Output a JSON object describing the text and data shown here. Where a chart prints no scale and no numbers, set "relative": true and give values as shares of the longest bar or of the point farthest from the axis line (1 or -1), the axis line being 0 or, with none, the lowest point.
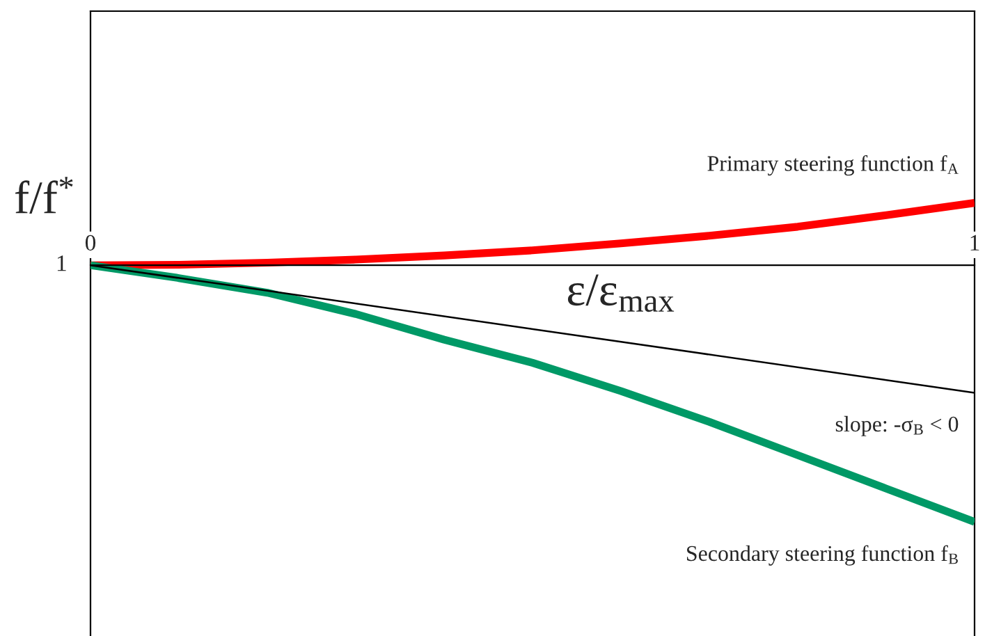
{
  "chart_data": {
    "type": "line",
    "relative": true,
    "ylabel": "f/f$^{*}$",
    "xlabel": "ε/ε$_{max}$",
    "x": [
      0,
      0.1,
      0.2,
      0.3,
      0.4,
      0.5,
      0.6,
      0.7,
      0.8,
      0.9,
      1.0
    ],
    "xlim": [
      0,
      1
    ],
    "xticks": [
      0,
      1
    ],
    "series": [
      {
        "name": "Primary steering function f$_{A}$",
        "color": "#ff0000",
        "values": [
          0,
          0.002,
          0.01,
          0.022,
          0.038,
          0.058,
          0.085,
          0.115,
          0.15,
          0.195,
          0.243
        ]
      },
      {
        "name": "Secondary steering function f$_{B}$",
        "color": "#009966",
        "values": [
          0,
          -0.05,
          -0.107,
          -0.19,
          -0.29,
          -0.38,
          -0.49,
          -0.61,
          -0.74,
          -0.87,
          -1.0
        ]
      },
      {
        "name": "slope: -σ$_{B}$ < 0",
        "color": "#000000",
        "x": [
          0,
          1
        ],
        "values": [
          0,
          -0.497
        ]
      }
    ],
    "annotations": [
      "1"
    ],
    "marker": "none",
    "line_style": "solid"
  }
}
